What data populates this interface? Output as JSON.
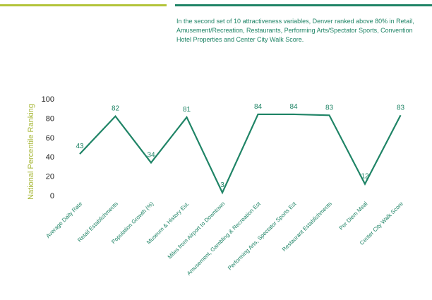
{
  "header": {
    "summary": "In the second set of 10 attractiveness variables, Denver ranked above 80% in Retail, Amusement/Recreation, Restaurants, Performing Arts/Spectator Sports, Convention Hotel Properties and Center City Walk Score."
  },
  "colors": {
    "accent_green": "#b3c43a",
    "line_green": "#1f8466",
    "label_green": "#a8b83a",
    "axis_text": "#1a1a1a"
  },
  "chart_data": {
    "type": "line",
    "ylabel": "National Percentile Ranking",
    "xlabel": "",
    "title": "",
    "ylim": [
      0,
      100
    ],
    "yticks": [
      0,
      20,
      40,
      60,
      80,
      100
    ],
    "grid": false,
    "categories": [
      "Average Daily Rate",
      "Retail Establishments",
      "Population Growth (%)",
      "Museum & History Est.",
      "Miles from Airport to Downtown",
      "Amusement, Gambling & Recreation Est",
      "Performing Arts, Spectator Sports Est",
      "Restaurant Establishments",
      "Per Diem Meal",
      "Center City Walk Score"
    ],
    "values": [
      43,
      82,
      34,
      81,
      3,
      84,
      84,
      83,
      12,
      83
    ]
  }
}
